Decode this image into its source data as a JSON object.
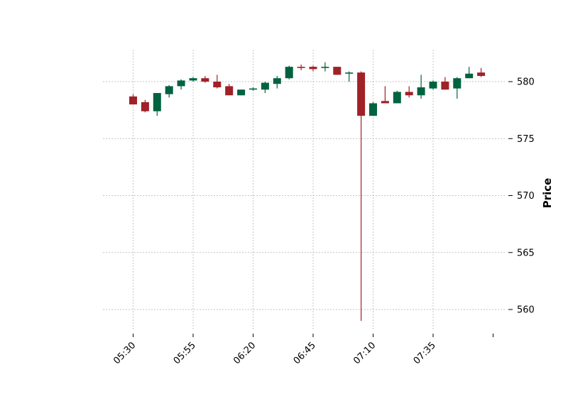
{
  "chart_data": {
    "type": "candlestick",
    "ylabel": "Price",
    "y_ticks": [
      560,
      565,
      570,
      575,
      580
    ],
    "ylim": [
      558,
      582.8
    ],
    "x_tick_labels": [
      "05:30",
      "05:55",
      "06:20",
      "06:45",
      "07:10",
      "07:35",
      ""
    ],
    "grid": true,
    "y_axis_side": "right",
    "colors": {
      "up": "#006340",
      "down": "#a02128",
      "grid": "#b0b0b0"
    },
    "candles": [
      {
        "time": "05:30",
        "open": 578.7,
        "high": 578.9,
        "low": 578.0,
        "close": 578.0
      },
      {
        "time": "05:35",
        "open": 578.2,
        "high": 578.4,
        "low": 577.3,
        "close": 577.4
      },
      {
        "time": "05:40",
        "open": 577.4,
        "high": 579.0,
        "low": 577.0,
        "close": 579.0
      },
      {
        "time": "05:45",
        "open": 578.9,
        "high": 579.7,
        "low": 578.6,
        "close": 579.6
      },
      {
        "time": "05:50",
        "open": 579.6,
        "high": 580.2,
        "low": 579.3,
        "close": 580.1
      },
      {
        "time": "05:55",
        "open": 580.1,
        "high": 580.4,
        "low": 580.0,
        "close": 580.3
      },
      {
        "time": "06:00",
        "open": 580.3,
        "high": 580.5,
        "low": 579.9,
        "close": 580.0
      },
      {
        "time": "06:05",
        "open": 580.0,
        "high": 580.6,
        "low": 579.4,
        "close": 579.5
      },
      {
        "time": "06:10",
        "open": 579.6,
        "high": 579.8,
        "low": 578.8,
        "close": 578.8
      },
      {
        "time": "06:15",
        "open": 578.8,
        "high": 579.3,
        "low": 578.8,
        "close": 579.3
      },
      {
        "time": "06:20",
        "open": 579.3,
        "high": 579.5,
        "low": 579.2,
        "close": 579.4
      },
      {
        "time": "06:25",
        "open": 579.3,
        "high": 580.0,
        "low": 579.0,
        "close": 579.9
      },
      {
        "time": "06:30",
        "open": 579.8,
        "high": 580.5,
        "low": 579.4,
        "close": 580.3
      },
      {
        "time": "06:35",
        "open": 580.3,
        "high": 581.4,
        "low": 580.2,
        "close": 581.3
      },
      {
        "time": "06:40",
        "open": 581.3,
        "high": 581.5,
        "low": 581.0,
        "close": 581.2
      },
      {
        "time": "06:45",
        "open": 581.3,
        "high": 581.4,
        "low": 580.9,
        "close": 581.1
      },
      {
        "time": "06:50",
        "open": 581.2,
        "high": 581.7,
        "low": 580.9,
        "close": 581.3
      },
      {
        "time": "06:55",
        "open": 581.3,
        "high": 581.3,
        "low": 580.6,
        "close": 580.6
      },
      {
        "time": "07:00",
        "open": 580.7,
        "high": 580.9,
        "low": 580.0,
        "close": 580.8
      },
      {
        "time": "07:05",
        "open": 580.8,
        "high": 580.9,
        "low": 559.0,
        "close": 577.0
      },
      {
        "time": "07:10",
        "open": 577.0,
        "high": 578.2,
        "low": 577.0,
        "close": 578.1
      },
      {
        "time": "07:15",
        "open": 578.3,
        "high": 579.6,
        "low": 578.1,
        "close": 578.1
      },
      {
        "time": "07:20",
        "open": 578.1,
        "high": 579.2,
        "low": 578.1,
        "close": 579.1
      },
      {
        "time": "07:25",
        "open": 579.1,
        "high": 579.6,
        "low": 578.6,
        "close": 578.8
      },
      {
        "time": "07:30",
        "open": 578.8,
        "high": 580.6,
        "low": 578.5,
        "close": 579.5
      },
      {
        "time": "07:35",
        "open": 579.4,
        "high": 580.1,
        "low": 579.3,
        "close": 580.0
      },
      {
        "time": "07:40",
        "open": 580.0,
        "high": 580.4,
        "low": 579.3,
        "close": 579.3
      },
      {
        "time": "07:45",
        "open": 579.4,
        "high": 580.4,
        "low": 578.5,
        "close": 580.3
      },
      {
        "time": "07:50",
        "open": 580.3,
        "high": 581.3,
        "low": 580.3,
        "close": 580.7
      },
      {
        "time": "07:55",
        "open": 580.8,
        "high": 581.2,
        "low": 580.4,
        "close": 580.5
      }
    ]
  }
}
